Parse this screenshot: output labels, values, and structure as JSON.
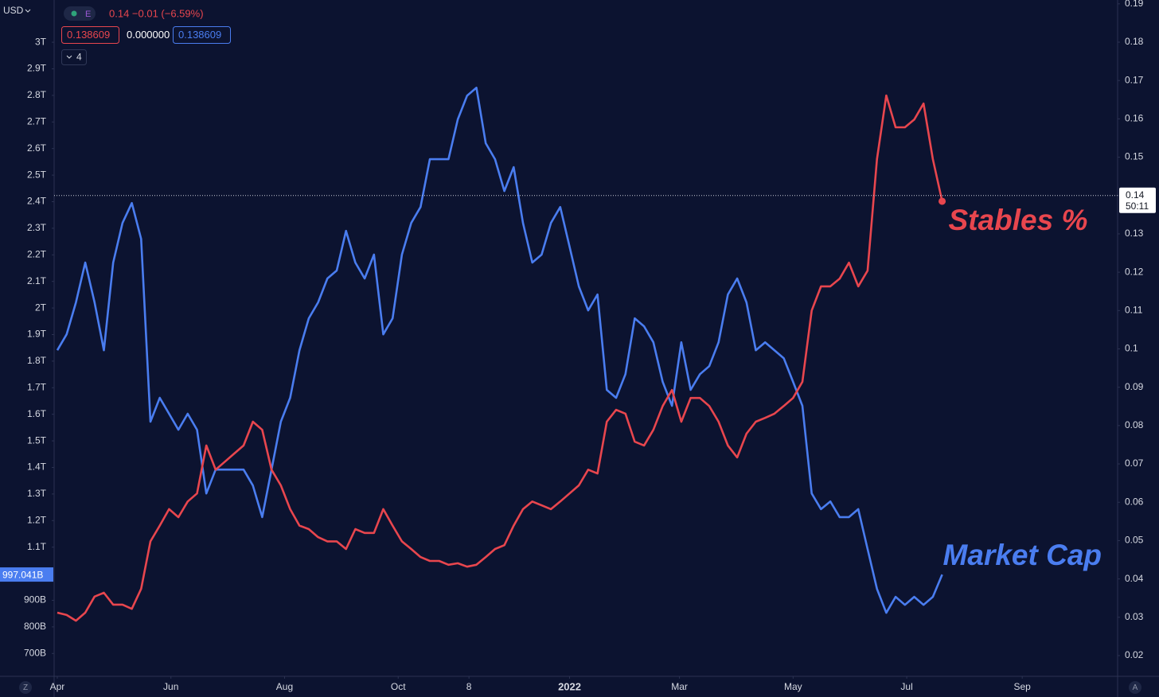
{
  "chart_data": {
    "type": "line",
    "currency": "USD",
    "legend": {
      "symbol": "E",
      "change": "0.14 −0.01 (−6.59%)",
      "values": [
        "0.138609",
        "0.000000",
        "0.138609"
      ],
      "collapsed": "4"
    },
    "left_badge": "997.041B",
    "right_badge": {
      "value": 0.14,
      "label": "0.14",
      "countdown": "50:11"
    },
    "corner_left": "Z",
    "corner_right": "A",
    "xlim": [
      -1.7,
      569.2
    ],
    "xticks": [
      {
        "value": 0,
        "label": "Apr"
      },
      {
        "value": 61,
        "label": "Jun"
      },
      {
        "value": 122,
        "label": "Aug"
      },
      {
        "value": 183,
        "label": "Oct"
      },
      {
        "value": 221,
        "label": "8"
      },
      {
        "value": 275,
        "label": "2022",
        "emphasis": true
      },
      {
        "value": 334,
        "label": "Mar"
      },
      {
        "value": 395,
        "label": "May"
      },
      {
        "value": 456,
        "label": "Jul"
      },
      {
        "value": 518,
        "label": "Sep"
      }
    ],
    "ylim": [
      614,
      3159
    ],
    "yticks": [
      {
        "value": 3000,
        "label": "3T"
      },
      {
        "value": 2900,
        "label": "2.9T"
      },
      {
        "value": 2800,
        "label": "2.8T"
      },
      {
        "value": 2700,
        "label": "2.7T"
      },
      {
        "value": 2600,
        "label": "2.6T"
      },
      {
        "value": 2500,
        "label": "2.5T"
      },
      {
        "value": 2400,
        "label": "2.4T"
      },
      {
        "value": 2300,
        "label": "2.3T"
      },
      {
        "value": 2200,
        "label": "2.2T"
      },
      {
        "value": 2100,
        "label": "2.1T"
      },
      {
        "value": 2000,
        "label": "2T"
      },
      {
        "value": 1900,
        "label": "1.9T"
      },
      {
        "value": 1800,
        "label": "1.8T"
      },
      {
        "value": 1700,
        "label": "1.7T"
      },
      {
        "value": 1600,
        "label": "1.6T"
      },
      {
        "value": 1500,
        "label": "1.5T"
      },
      {
        "value": 1400,
        "label": "1.4T"
      },
      {
        "value": 1300,
        "label": "1.3T"
      },
      {
        "value": 1200,
        "label": "1.2T"
      },
      {
        "value": 1100,
        "label": "1.1T"
      },
      {
        "value": 900,
        "label": "900B"
      },
      {
        "value": 800,
        "label": "800B"
      },
      {
        "value": 700,
        "label": "700B"
      }
    ],
    "y2lim": [
      0.0146,
      0.191
    ],
    "y2ticks": [
      0.19,
      0.18,
      0.17,
      0.16,
      0.15,
      0.14,
      0.13,
      0.12,
      0.11,
      0.1,
      0.09,
      0.08,
      0.07,
      0.06,
      0.05,
      0.04,
      0.03,
      0.02
    ],
    "x": [
      0,
      5,
      10,
      15,
      20,
      25,
      30,
      35,
      40,
      45,
      50,
      55,
      60,
      65,
      70,
      75,
      80,
      85,
      90,
      95,
      100,
      105,
      110,
      115,
      120,
      125,
      130,
      135,
      140,
      145,
      150,
      155,
      160,
      165,
      170,
      175,
      180,
      185,
      190,
      195,
      200,
      205,
      210,
      215,
      220,
      225,
      230,
      235,
      240,
      245,
      250,
      255,
      260,
      265,
      270,
      275,
      280,
      285,
      290,
      295,
      300,
      305,
      310,
      315,
      320,
      325,
      330,
      335,
      340,
      345,
      350,
      355,
      360,
      365,
      370,
      375,
      380,
      385,
      390,
      395,
      400,
      405,
      410,
      415,
      420,
      425,
      430,
      435,
      440,
      445,
      450,
      455,
      460,
      465,
      470,
      475
    ],
    "series": [
      {
        "name": "Market Cap",
        "color": "#4a7df0",
        "axis": "y",
        "values": [
          1841,
          1901,
          2021,
          2171,
          2021,
          1841,
          2171,
          2320,
          2395,
          2260,
          1572,
          1662,
          1602,
          1542,
          1602,
          1542,
          1302,
          1392,
          1392,
          1392,
          1392,
          1332,
          1213,
          1392,
          1572,
          1662,
          1841,
          1961,
          2021,
          2111,
          2141,
          2290,
          2171,
          2111,
          2201,
          1901,
          1961,
          2201,
          2320,
          2380,
          2560,
          2560,
          2560,
          2710,
          2799,
          2829,
          2620,
          2560,
          2440,
          2530,
          2320,
          2171,
          2201,
          2320,
          2380,
          2231,
          2081,
          1991,
          2051,
          1692,
          1662,
          1751,
          1961,
          1931,
          1871,
          1722,
          1632,
          1871,
          1692,
          1751,
          1781,
          1871,
          2051,
          2111,
          2021,
          1841,
          1871,
          1841,
          1811,
          1722,
          1632,
          1302,
          1243,
          1272,
          1213,
          1213,
          1243,
          1093,
          943,
          853,
          913,
          883,
          913,
          883,
          913,
          997
        ]
      },
      {
        "name": "Stables %",
        "color": "#e8464e",
        "axis": "y2",
        "values": [
          0.0312,
          0.0306,
          0.0291,
          0.0312,
          0.0354,
          0.0364,
          0.0333,
          0.0333,
          0.0322,
          0.0374,
          0.0498,
          0.0539,
          0.0582,
          0.0561,
          0.0602,
          0.0623,
          0.0748,
          0.0685,
          0.0706,
          0.0727,
          0.0748,
          0.081,
          0.0789,
          0.0685,
          0.0644,
          0.0582,
          0.0539,
          0.053,
          0.0509,
          0.0498,
          0.0498,
          0.0478,
          0.053,
          0.052,
          0.052,
          0.0582,
          0.0539,
          0.0498,
          0.0478,
          0.0457,
          0.0447,
          0.0447,
          0.0437,
          0.0441,
          0.0432,
          0.0437,
          0.0457,
          0.0478,
          0.0488,
          0.0539,
          0.0582,
          0.0602,
          0.0592,
          0.0582,
          0.0602,
          0.0623,
          0.0644,
          0.0685,
          0.0675,
          0.081,
          0.0841,
          0.0831,
          0.0758,
          0.0748,
          0.0789,
          0.0851,
          0.0893,
          0.081,
          0.0872,
          0.0872,
          0.0851,
          0.081,
          0.0748,
          0.0717,
          0.0779,
          0.081,
          0.082,
          0.0831,
          0.0851,
          0.0872,
          0.0914,
          0.11,
          0.1163,
          0.1163,
          0.1183,
          0.1225,
          0.1163,
          0.1204,
          0.1495,
          0.1661,
          0.1578,
          0.1578,
          0.1598,
          0.164,
          0.1495,
          0.1385
        ]
      }
    ]
  }
}
